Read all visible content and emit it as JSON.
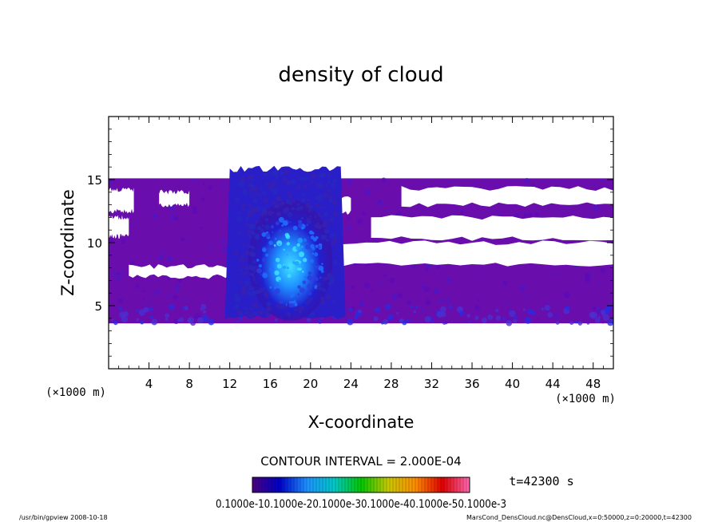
{
  "chart_data": {
    "type": "heatmap",
    "title": "density of cloud",
    "xlabel": "X-coordinate",
    "ylabel": "Z-coordinate",
    "x_unit": "(×1000 m)",
    "y_unit": "(×1000 m)",
    "xlim": [
      0,
      50
    ],
    "ylim": [
      0,
      20
    ],
    "x_ticks": [
      4,
      8,
      12,
      16,
      20,
      24,
      28,
      32,
      36,
      40,
      44,
      48
    ],
    "y_ticks": [
      5,
      10,
      15
    ],
    "x_tick_labels": [
      "4",
      "8",
      "12",
      "16",
      "20",
      "24",
      "28",
      "32",
      "36",
      "40",
      "44",
      "48"
    ],
    "y_tick_labels": [
      "5",
      "10",
      "15"
    ],
    "contour_interval": "CONTOUR INTERVAL = 2.000E-04",
    "time_label": "t=42300 s",
    "colorbar": {
      "tick_text": "0.1000e-10.1000e-20.1000e-30.1000e-40.1000e-50.1000e-3",
      "colors": [
        "#4b0082",
        "#0000c8",
        "#1e90ff",
        "#00c8c8",
        "#00c800",
        "#c8c800",
        "#ff8c00",
        "#e00000",
        "#ff69b4"
      ]
    },
    "cloud_layer": {
      "z_bottom": 3.6,
      "z_top": 15.1
    },
    "convective_column": {
      "x_center": 18,
      "x_left": 12,
      "x_right": 23,
      "z_top": 16.2,
      "max_color": "#00ffff"
    },
    "clear_regions": [
      {
        "x": [
          0,
          2.5
        ],
        "z": [
          12.5,
          14.2
        ]
      },
      {
        "x": [
          5,
          8
        ],
        "z": [
          13.0,
          14.0
        ]
      },
      {
        "x": [
          20,
          24
        ],
        "z": [
          12.4,
          13.6
        ]
      },
      {
        "x": [
          26,
          50
        ],
        "z": [
          10.3,
          12.0
        ]
      },
      {
        "x": [
          29,
          50
        ],
        "z": [
          13.0,
          14.3
        ]
      },
      {
        "x": [
          2,
          12
        ],
        "z": [
          7.3,
          8.1
        ]
      },
      {
        "x": [
          22,
          50
        ],
        "z": [
          8.3,
          10.0
        ]
      },
      {
        "x": [
          0,
          2
        ],
        "z": [
          10.5,
          12.0
        ]
      }
    ],
    "colors": {
      "background_cloud": "#6a0dad",
      "mid": "#3d3df0",
      "high": "#40c8ff"
    }
  },
  "footer": {
    "left": "/usr/bin/gpview   2008-10-18",
    "right": "MarsCond_DensCloud.nc@DensCloud,x=0:50000,z=0:20000,t=42300"
  }
}
